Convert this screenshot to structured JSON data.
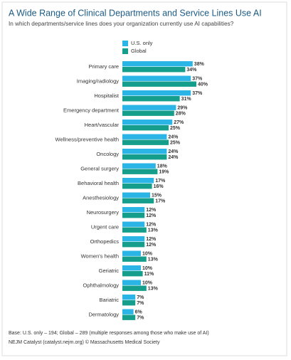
{
  "chart_data": {
    "type": "bar",
    "orientation": "horizontal",
    "title": "A Wide Range of Clinical Departments and Service Lines Use AI",
    "subtitle": "In which departments/service lines does your organization currently use AI capabilities?",
    "categories": [
      "Primary care",
      "Imaging/radiology",
      "Hospitalist",
      "Emergency department",
      "Heart/vascular",
      "Wellness/preventive health",
      "Oncology",
      "General surgery",
      "Behavioral health",
      "Anesthesiology",
      "Neurosurgery",
      "Urgent care",
      "Orthopedics",
      "Women's health",
      "Geriatric",
      "Ophthalmology",
      "Bariatric",
      "Dermatology"
    ],
    "series": [
      {
        "name": "U.S. only",
        "color": "#2bb5e6",
        "values": [
          38,
          37,
          37,
          29,
          27,
          24,
          24,
          18,
          17,
          15,
          12,
          12,
          12,
          10,
          10,
          10,
          7,
          6
        ],
        "value_labels": [
          "38%",
          "37%",
          "37%",
          "29%",
          "27%",
          "24%",
          "24%",
          "18%",
          "17%",
          "15%",
          "12%",
          "12%",
          "12%",
          "10%",
          "10%",
          "10%",
          "7%",
          "6%"
        ]
      },
      {
        "name": "Global",
        "color": "#169e8c",
        "values": [
          34,
          40,
          31,
          28,
          25,
          25,
          24,
          19,
          16,
          17,
          12,
          13,
          12,
          13,
          11,
          13,
          7,
          7
        ],
        "value_labels": [
          "34%",
          "40%",
          "31%",
          "28%",
          "25%",
          "25%",
          "24%",
          "19%",
          "16%",
          "17%",
          "12%",
          "13%",
          "12%",
          "13%",
          "11%",
          "13%",
          "7%",
          "7%"
        ]
      }
    ],
    "footnotes": [
      "Base: U.S. only – 194; Global – 289 (multiple responses among those who make use of AI)",
      "NEJM Catalyst (catalyst.nejm.org) © Massachusetts Medical Society"
    ]
  }
}
